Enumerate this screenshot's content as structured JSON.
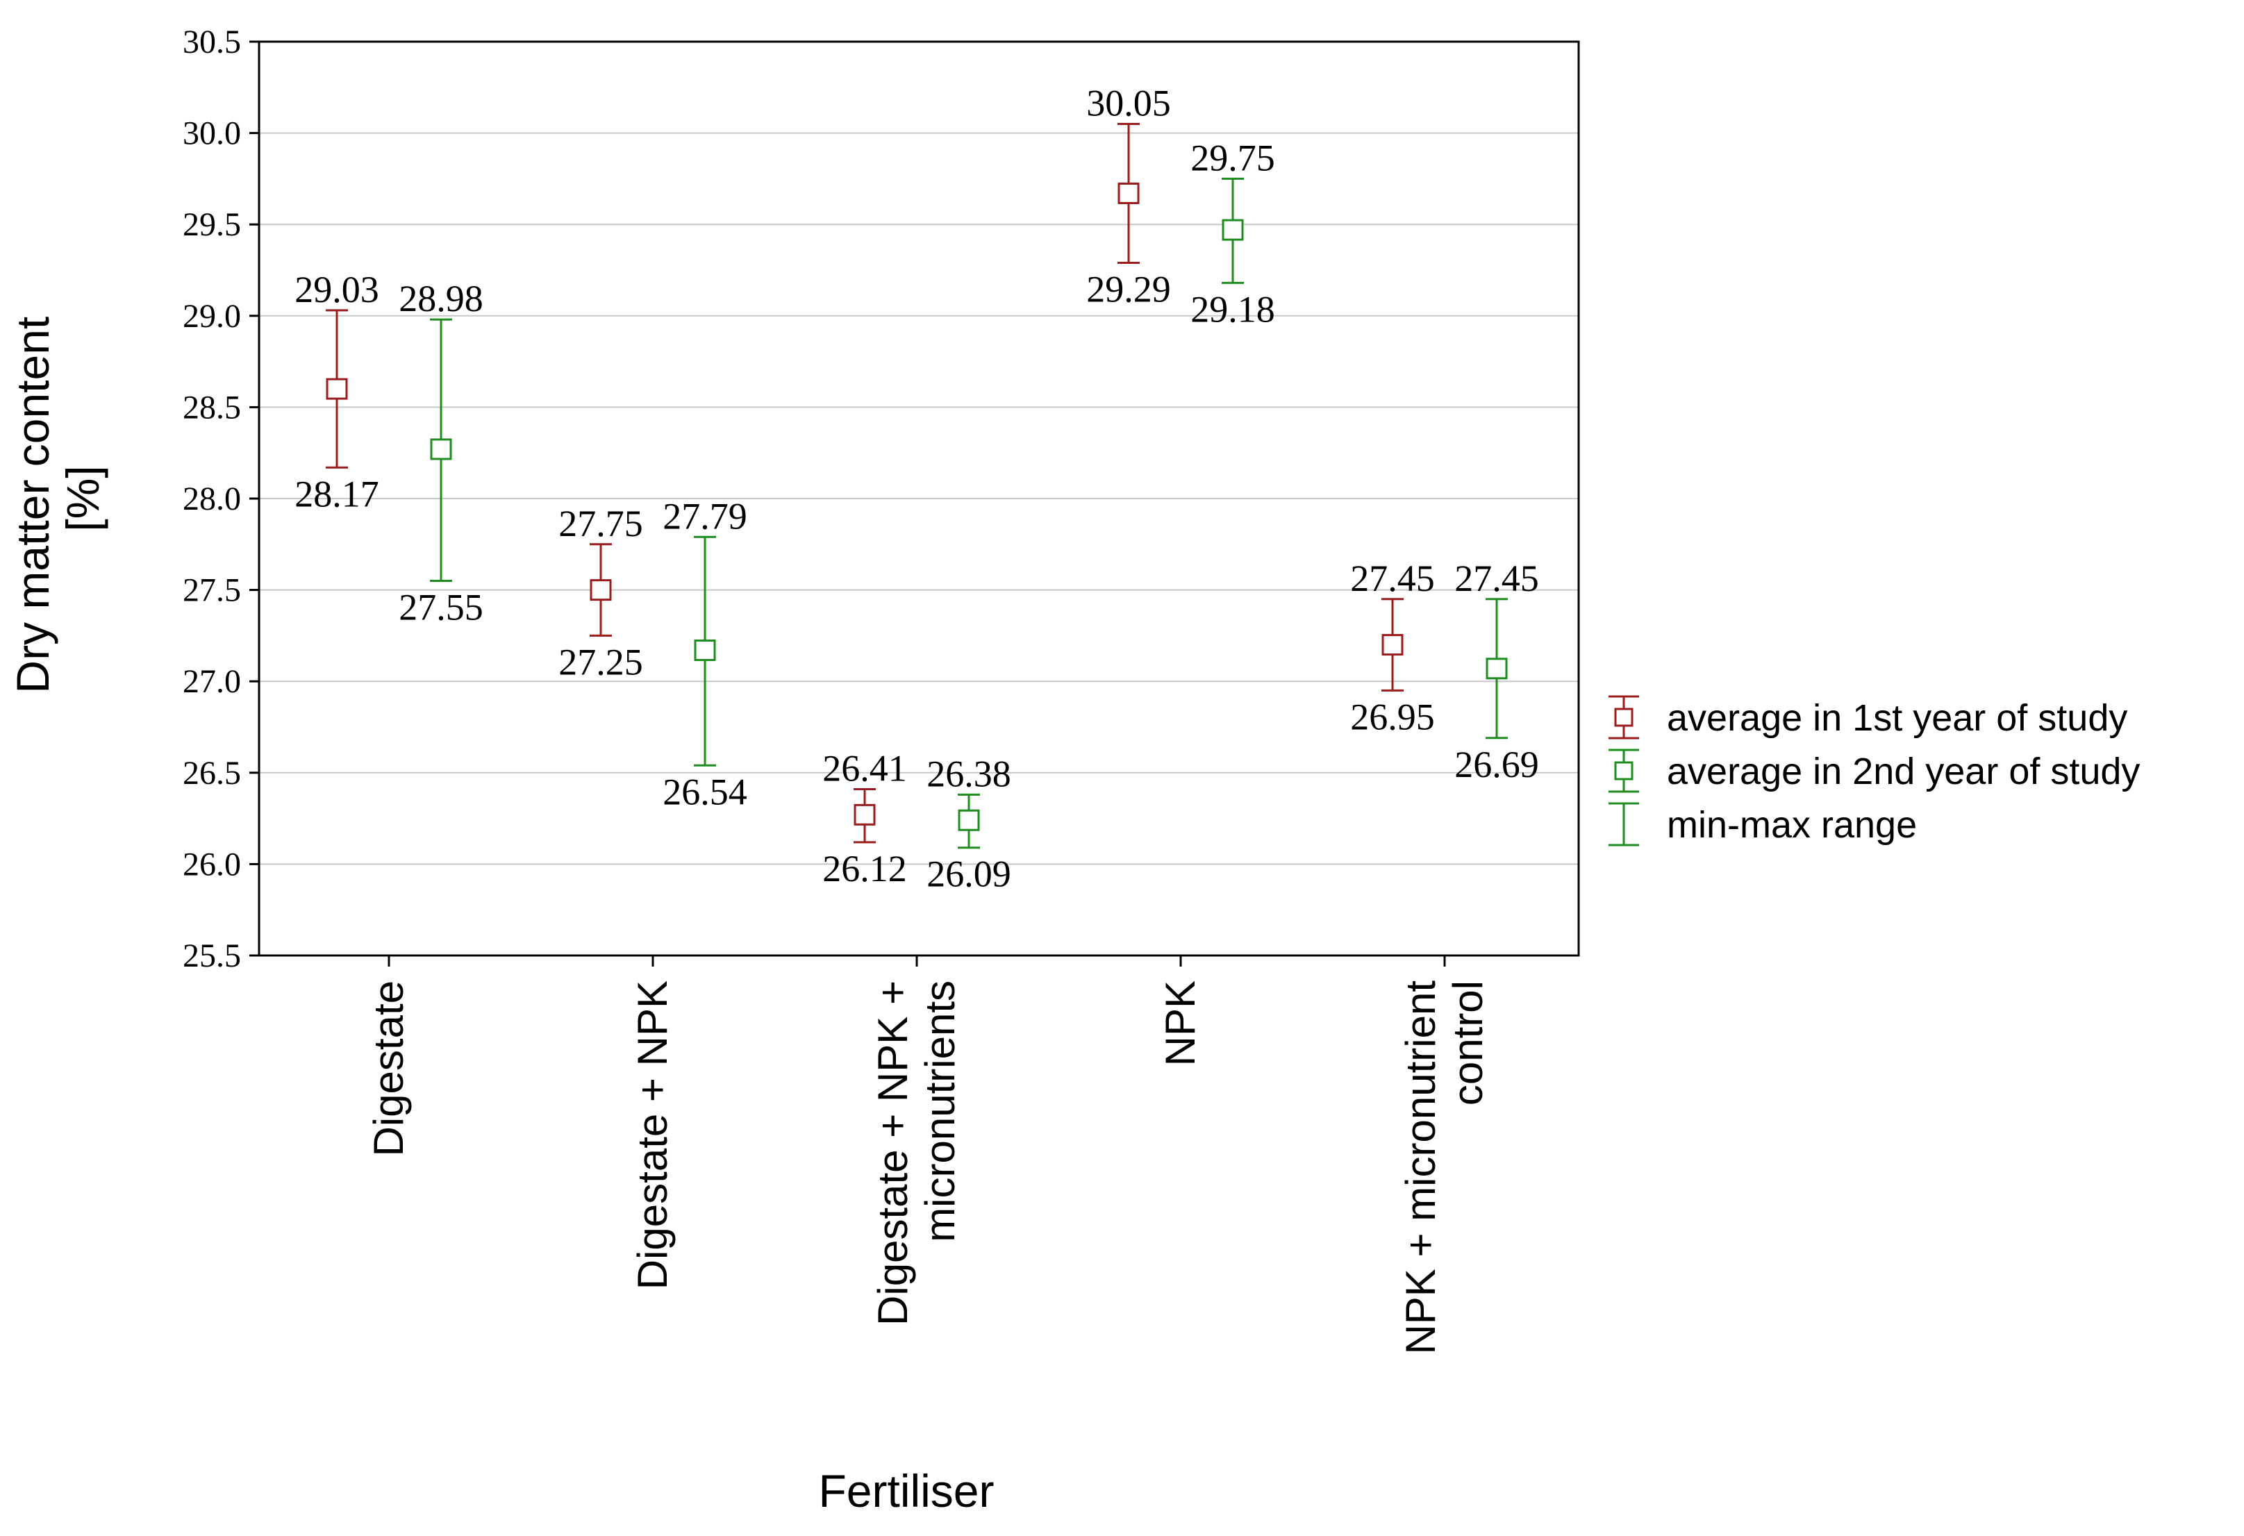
{
  "chart_data": {
    "type": "scatter",
    "subtype": "mean-with-min-max-error-bars",
    "ylabel_line1": "Dry matter content",
    "ylabel_line2": "[%]",
    "xlabel": "Fertiliser",
    "ylim": [
      25.5,
      30.5
    ],
    "y_ticks": [
      "25.5",
      "26.0",
      "26.5",
      "27.0",
      "27.5",
      "28.0",
      "28.5",
      "29.0",
      "29.5",
      "30.0",
      "30.5"
    ],
    "grid": true,
    "legend_position": "right",
    "categories": [
      [
        "Digestate"
      ],
      [
        "Digestate + NPK"
      ],
      [
        "Digestate + NPK +",
        "micronutrients"
      ],
      [
        "NPK"
      ],
      [
        "NPK + micronutrient",
        "control"
      ]
    ],
    "series": [
      {
        "name": "average in 1st year of study",
        "color": "#9b1c1c",
        "mean": [
          28.6,
          27.5,
          26.27,
          29.67,
          27.2
        ],
        "min": [
          28.17,
          27.25,
          26.12,
          29.29,
          26.95
        ],
        "max": [
          29.03,
          27.75,
          26.41,
          30.05,
          27.45
        ],
        "min_labels": [
          "28.17",
          "27.25",
          "26.12",
          "29.29",
          "26.95"
        ],
        "max_labels": [
          "29.03",
          "27.75",
          "26.41",
          "30.05",
          "27.45"
        ]
      },
      {
        "name": "average in 2nd year of study",
        "color": "#1e8c1e",
        "mean": [
          28.27,
          27.17,
          26.24,
          29.47,
          27.07
        ],
        "min": [
          27.55,
          26.54,
          26.09,
          29.18,
          26.69
        ],
        "max": [
          28.98,
          27.79,
          26.38,
          29.75,
          27.45
        ],
        "min_labels": [
          "27.55",
          "26.54",
          "26.09",
          "29.18",
          "26.69"
        ],
        "max_labels": [
          "28.98",
          "27.79",
          "26.38",
          "29.75",
          "27.45"
        ]
      }
    ],
    "legend": [
      {
        "label": "average in 1st year of study",
        "color": "#9b1c1c",
        "kind": "mean-box"
      },
      {
        "label": "average in 2nd year of study",
        "color": "#1e8c1e",
        "kind": "mean-box"
      },
      {
        "label": "min-max range",
        "color": "#1e8c1e",
        "kind": "whisker"
      }
    ]
  }
}
